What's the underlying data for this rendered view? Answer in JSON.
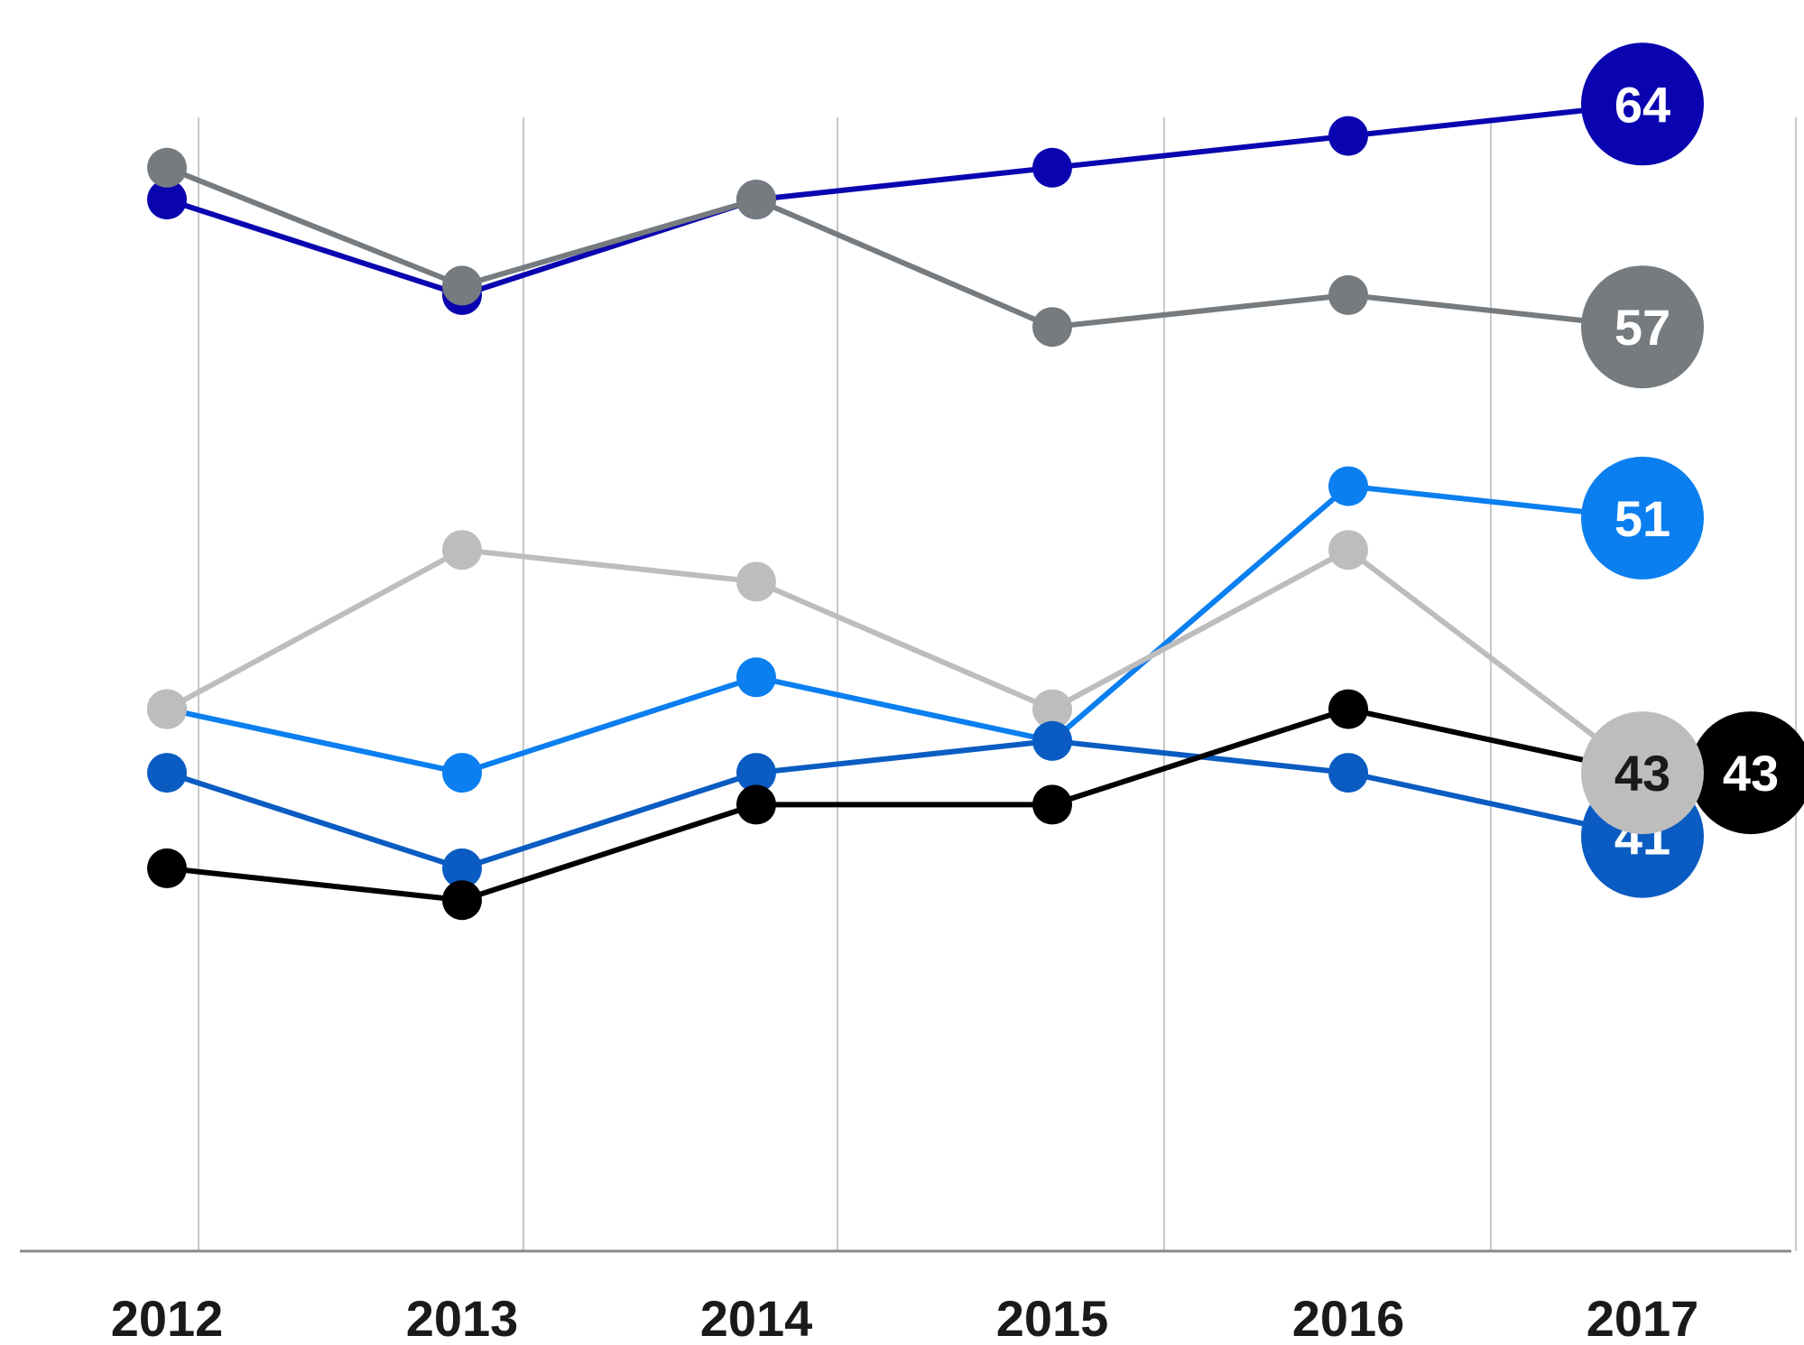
{
  "chart_data": {
    "type": "line",
    "title": "",
    "xlabel": "",
    "ylabel": "",
    "x": [
      "2012",
      "2013",
      "2014",
      "2015",
      "2016",
      "2017"
    ],
    "ylim": [
      29,
      65
    ],
    "grid": {
      "vertical": true,
      "horizontal": false
    },
    "legend": "none",
    "series": [
      {
        "values": [
          61,
          58,
          61,
          62,
          63,
          64
        ],
        "color": "#0a04b0",
        "end_label": "64",
        "end_label_color": "#ffffff"
      },
      {
        "values": [
          62,
          58.3,
          61,
          57,
          58,
          57
        ],
        "color": "#757b7f",
        "end_label": "57",
        "end_label_color": "#ffffff"
      },
      {
        "values": [
          45,
          43,
          46,
          44,
          52,
          51
        ],
        "color": "#0b7ff0",
        "end_label": "51",
        "end_label_color": "#ffffff"
      },
      {
        "values": [
          45,
          50,
          49,
          45,
          50,
          43
        ],
        "color": "#bdbdbd",
        "end_label": "43",
        "end_label_color": "#1a1a1a"
      },
      {
        "values": [
          43,
          40,
          43,
          44,
          43,
          41
        ],
        "color": "#0b5cc2",
        "end_label": "41",
        "end_label_color": "#ffffff"
      },
      {
        "values": [
          40,
          39,
          42,
          42,
          45,
          43
        ],
        "color": "#000000",
        "end_label": "43",
        "end_label_color": "#ffffff"
      }
    ]
  }
}
